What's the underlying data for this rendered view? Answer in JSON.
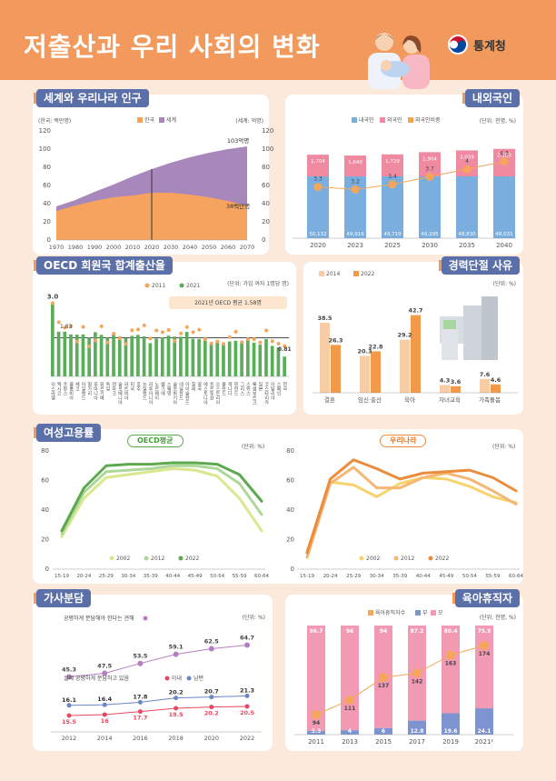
{
  "header": {
    "title": "저출산과 우리 사회의 변화",
    "org": "통계청"
  },
  "panels": {
    "p1": {
      "title": "세계와 우리나라 인구",
      "unit_left": "(한국: 백만명)",
      "unit_right": "(세계: 억명)",
      "legend": [
        "한국",
        "세계"
      ],
      "label_world": "103억명",
      "label_korea": "38백만명"
    },
    "p2": {
      "title": "내외국인",
      "unit": "(단위: 천명, %)",
      "legend": [
        "내국인",
        "외국인",
        "외국인비중"
      ]
    },
    "p3": {
      "title": "OECD 회원국 합계출산율",
      "unit": "(단위: 가임 여자 1명당 명)",
      "legend": [
        "2011",
        "2021"
      ],
      "note": "2021년 OECD 평균 1.58명"
    },
    "p4": {
      "title": "경력단절 사유",
      "unit": "(단위: %)",
      "legend": [
        "2014",
        "2022"
      ]
    },
    "p5": {
      "title": "여성고용률",
      "badge_left": "OECD평균",
      "badge_right": "우리나라",
      "unit": "(단위: %)",
      "legend": [
        "2002",
        "2012",
        "2022"
      ]
    },
    "p6": {
      "title": "가사분담",
      "unit": "(단위: %)",
      "label_top": "공평하게 분담해야 한다는 견해",
      "label_bottom": "실제 공평하게 분담하고 있음",
      "legend_bottom": [
        "아내",
        "남편"
      ]
    },
    "p7": {
      "title": "육아휴직자",
      "unit": "(단위: 천명, %)",
      "legend": [
        "육아휴직자수",
        "부",
        "모"
      ]
    }
  },
  "chart_data": [
    {
      "id": "population",
      "type": "area",
      "title": "세계와 우리나라 인구",
      "x": [
        1970,
        1980,
        1990,
        2000,
        2010,
        2020,
        2030,
        2040,
        2050,
        2060,
        2070
      ],
      "y_ticks_left": [
        0,
        20,
        40,
        60,
        80,
        100,
        120
      ],
      "y_ticks_right": [
        0,
        20,
        40,
        60,
        80,
        100,
        120
      ],
      "ylim": [
        0,
        120
      ],
      "series": [
        {
          "name": "한국",
          "unit": "백만명",
          "values": [
            32,
            38,
            43,
            47,
            49,
            52,
            52,
            50,
            47,
            43,
            38
          ]
        },
        {
          "name": "세계",
          "unit": "억명",
          "values": [
            37,
            44,
            53,
            61,
            70,
            78,
            85,
            91,
            96,
            100,
            103
          ]
        }
      ],
      "annotations": [
        "103억명",
        "38백만명"
      ],
      "colors": {
        "한국": "#f6a360",
        "세계": "#a887bd"
      }
    },
    {
      "id": "residents",
      "type": "bar",
      "title": "내외국인",
      "categories": [
        "2020",
        "2023",
        "2025",
        "2030",
        "2035",
        "2040"
      ],
      "series": [
        {
          "name": "내국인",
          "values": [
            50132,
            49919,
            49719,
            49295,
            48830,
            48031
          ]
        },
        {
          "name": "외국인",
          "values": [
            1704,
            1640,
            1729,
            1904,
            2039,
            2163
          ]
        },
        {
          "name": "외국인비중",
          "values": [
            3.3,
            3.2,
            3.4,
            3.7,
            4.0,
            4.3
          ]
        }
      ],
      "colors": {
        "내국인": "#7aaede",
        "외국인": "#f08aa0",
        "외국인비중": "#f5a65b"
      }
    },
    {
      "id": "oecd_tfr",
      "type": "bar",
      "title": "OECD 회원국 합계출산율",
      "ylim": [
        0,
        3.2
      ],
      "categories": [
        "이스라엘",
        "멕시코",
        "프랑스",
        "콜롬비아",
        "체코",
        "아일랜드",
        "헝가리",
        "루마니아",
        "튀르키예",
        "독일",
        "덴마크",
        "슬로베니아",
        "라트비아",
        "미국",
        "호주",
        "뉴질랜드",
        "리투아니아",
        "노르웨이",
        "벨기에",
        "스웨덴",
        "슬로바키아",
        "네덜란드",
        "아이슬란드",
        "칠레",
        "영국",
        "에스토니아",
        "포르투갈",
        "오스트리아",
        "폴란드",
        "캐나다",
        "핀란드",
        "그리스",
        "스위스",
        "룩셈부르크",
        "일본",
        "코스타리카",
        "이탈리아",
        "스페인",
        "한국"
      ],
      "series": [
        {
          "name": "2011",
          "values": [
            3.0,
            2.22,
            2.0,
            2.05,
            1.43,
            2.03,
            1.23,
            1.47,
            2.05,
            1.39,
            1.75,
            1.56,
            1.33,
            1.89,
            1.92,
            2.09,
            1.55,
            1.88,
            1.81,
            1.9,
            1.45,
            1.76,
            2.02,
            1.81,
            1.91,
            1.52,
            1.35,
            1.43,
            1.33,
            1.61,
            1.83,
            1.4,
            1.52,
            1.52,
            1.39,
            1.88,
            1.44,
            1.34,
            1.24
          ]
        },
        {
          "name": "2021",
          "values": [
            3.0,
            1.83,
            1.83,
            1.72,
            1.71,
            1.72,
            1.59,
            1.81,
            1.7,
            1.58,
            1.72,
            1.64,
            1.57,
            1.66,
            1.7,
            1.64,
            1.36,
            1.55,
            1.6,
            1.67,
            1.63,
            1.62,
            1.82,
            1.54,
            1.53,
            1.61,
            1.38,
            1.48,
            1.33,
            1.43,
            1.46,
            1.43,
            1.51,
            1.38,
            1.3,
            1.53,
            1.25,
            1.19,
            0.81
          ]
        }
      ],
      "annotations": [
        "3.0",
        "1.83",
        "0.81",
        "2021년 OECD 평균 1.58명"
      ],
      "colors": {
        "2011": "#f5a65b",
        "2021": "#5aae5a"
      }
    },
    {
      "id": "career_break",
      "type": "bar",
      "title": "경력단절 사유",
      "categories": [
        "결혼",
        "임신·출산",
        "육아",
        "자녀교육",
        "가족돌봄"
      ],
      "series": [
        {
          "name": "2014",
          "values": [
            38.5,
            20.3,
            29.2,
            4.3,
            7.6
          ]
        },
        {
          "name": "2022",
          "values": [
            26.3,
            22.8,
            42.7,
            3.6,
            4.6
          ]
        }
      ],
      "colors": {
        "2014": "#f7cda5",
        "2022": "#f2994a"
      }
    },
    {
      "id": "emp_oecd",
      "type": "line",
      "title": "OECD평균",
      "categories": [
        "15-19",
        "20-24",
        "25-29",
        "30-34",
        "35-39",
        "40-44",
        "45-49",
        "50-54",
        "55-59",
        "60-64"
      ],
      "ylim": [
        0,
        80
      ],
      "series": [
        {
          "name": "2002",
          "values": [
            22,
            48,
            62,
            64,
            66,
            68,
            67,
            63,
            48,
            26
          ]
        },
        {
          "name": "2012",
          "values": [
            24,
            52,
            66,
            67,
            68,
            70,
            70,
            68,
            58,
            37
          ]
        },
        {
          "name": "2022",
          "values": [
            26,
            55,
            70,
            71,
            71,
            72,
            72,
            71,
            64,
            46
          ]
        }
      ],
      "colors": {
        "2002": "#d9e88e",
        "2012": "#aed79a",
        "2022": "#5ea850"
      }
    },
    {
      "id": "emp_korea",
      "type": "line",
      "title": "우리나라",
      "categories": [
        "15-19",
        "20-24",
        "25-29",
        "30-34",
        "35-39",
        "40-44",
        "45-49",
        "50-54",
        "55-59",
        "60-64"
      ],
      "ylim": [
        0,
        80
      ],
      "series": [
        {
          "name": "2002",
          "values": [
            12,
            59,
            57,
            49,
            58,
            62,
            61,
            56,
            49,
            45
          ]
        },
        {
          "name": "2012",
          "values": [
            8,
            58,
            69,
            55,
            55,
            62,
            65,
            61,
            53,
            44
          ]
        },
        {
          "name": "2022",
          "values": [
            11,
            61,
            74,
            68,
            61,
            65,
            66,
            67,
            62,
            53
          ]
        }
      ],
      "colors": {
        "2002": "#f7d36e",
        "2012": "#f6b674",
        "2022": "#eb8c3d"
      }
    },
    {
      "id": "housework",
      "type": "line",
      "title": "가사분담",
      "categories": [
        "2012",
        "2014",
        "2016",
        "2018",
        "2020",
        "2022"
      ],
      "series": [
        {
          "name": "공평하게 분담해야 한다는 견해",
          "values": [
            45.3,
            47.5,
            53.5,
            59.1,
            62.5,
            64.7
          ]
        },
        {
          "name": "아내",
          "values": [
            15.5,
            16.0,
            17.7,
            19.5,
            20.2,
            20.5
          ]
        },
        {
          "name": "남편",
          "values": [
            16.1,
            16.4,
            17.8,
            20.2,
            20.7,
            21.3
          ]
        }
      ],
      "colors": {
        "견해": "#b67ec2",
        "아내": "#e8475f",
        "남편": "#6a86c8"
      }
    },
    {
      "id": "parental_leave",
      "type": "bar",
      "title": "육아휴직자",
      "categories": [
        "2011",
        "2013",
        "2015",
        "2017",
        "2019",
        "2021ᵖ"
      ],
      "series": [
        {
          "name": "육아휴직자수",
          "values": [
            94,
            111,
            137,
            142,
            163,
            174
          ]
        },
        {
          "name": "부",
          "values": [
            3.3,
            4.0,
            6.0,
            12.8,
            19.6,
            24.1
          ]
        },
        {
          "name": "모",
          "values": [
            96.7,
            96.0,
            94.0,
            87.2,
            80.4,
            75.9
          ]
        }
      ],
      "colors": {
        "육아휴직자수": "#f5a65b",
        "부": "#7d94d0",
        "모": "#f29ab4"
      }
    }
  ]
}
